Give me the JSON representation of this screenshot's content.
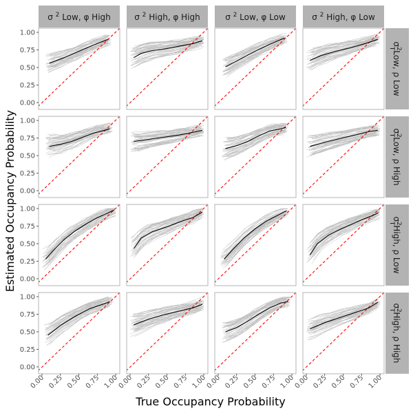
{
  "chart_data": {
    "type": "line",
    "xlabel": "True Occupancy Probability",
    "ylabel": "Estimated Occupancy Probability",
    "xlim": [
      0,
      1
    ],
    "ylim": [
      0,
      1
    ],
    "x_ticks": [
      "0.00",
      "0.25",
      "0.50",
      "0.75",
      "1.00"
    ],
    "y_ticks": [
      "0.00",
      "0.25",
      "0.50",
      "0.75",
      "1.00"
    ],
    "col_strips": [
      {
        "sig": "σ",
        "sup": "2",
        "rest": " Low, φ  High"
      },
      {
        "sig": "σ",
        "sup": "2",
        "rest": " High, φ  High"
      },
      {
        "sig": "σ",
        "sup": "2",
        "rest": " Low, φ  Low"
      },
      {
        "sig": "σ",
        "sup": "2",
        "rest": " High, φ  Low"
      }
    ],
    "row_strips": [
      {
        "sig": "σ",
        "sup": "2",
        "sub": "T",
        "rest": "Low, ρ  Low"
      },
      {
        "sig": "σ",
        "sup": "2",
        "sub": "T",
        "rest": "Low, ρ  High"
      },
      {
        "sig": "σ",
        "sup": "2",
        "sub": "T",
        "rest": "High, ρ  Low"
      },
      {
        "sig": "σ",
        "sup": "2",
        "sub": "T",
        "rest": "High, ρ  High"
      }
    ],
    "reference_line": {
      "name": "1:1 line",
      "x": [
        0,
        1
      ],
      "y": [
        0,
        1
      ],
      "color": "#ff0000",
      "dash": "dashed"
    },
    "colors": {
      "mean_line": "#000000",
      "replicate_lines": "#bebebe",
      "strip_bg": "#b3b3b3",
      "panel_border": "#b3b3b3"
    },
    "panels": [
      {
        "row": 0,
        "col": 0,
        "mean": {
          "x": [
            0.1,
            0.3,
            0.5,
            0.7,
            0.9
          ],
          "y": [
            0.56,
            0.64,
            0.73,
            0.82,
            0.9
          ]
        }
      },
      {
        "row": 0,
        "col": 1,
        "mean": {
          "x": [
            0.05,
            0.15,
            0.3,
            0.5,
            0.7,
            0.85,
            0.98
          ],
          "y": [
            0.64,
            0.7,
            0.74,
            0.77,
            0.81,
            0.84,
            0.88
          ]
        }
      },
      {
        "row": 0,
        "col": 2,
        "mean": {
          "x": [
            0.1,
            0.3,
            0.5,
            0.7,
            0.9
          ],
          "y": [
            0.51,
            0.62,
            0.73,
            0.83,
            0.92
          ]
        }
      },
      {
        "row": 0,
        "col": 3,
        "mean": {
          "x": [
            0.05,
            0.2,
            0.4,
            0.6,
            0.8,
            0.97
          ],
          "y": [
            0.6,
            0.67,
            0.73,
            0.78,
            0.84,
            0.9
          ]
        }
      },
      {
        "row": 1,
        "col": 0,
        "mean": {
          "x": [
            0.1,
            0.25,
            0.4,
            0.55,
            0.7,
            0.85,
            0.92
          ],
          "y": [
            0.63,
            0.66,
            0.7,
            0.76,
            0.82,
            0.86,
            0.88
          ]
        }
      },
      {
        "row": 1,
        "col": 1,
        "mean": {
          "x": [
            0.05,
            0.25,
            0.45,
            0.65,
            0.85,
            0.98
          ],
          "y": [
            0.7,
            0.73,
            0.76,
            0.79,
            0.83,
            0.86
          ]
        }
      },
      {
        "row": 1,
        "col": 2,
        "mean": {
          "x": [
            0.1,
            0.25,
            0.4,
            0.55,
            0.7,
            0.85,
            0.92
          ],
          "y": [
            0.6,
            0.64,
            0.7,
            0.78,
            0.85,
            0.88,
            0.9
          ]
        }
      },
      {
        "row": 1,
        "col": 3,
        "mean": {
          "x": [
            0.05,
            0.25,
            0.45,
            0.65,
            0.85,
            0.97
          ],
          "y": [
            0.63,
            0.69,
            0.74,
            0.79,
            0.84,
            0.86
          ]
        }
      },
      {
        "row": 2,
        "col": 0,
        "mean": {
          "x": [
            0.05,
            0.15,
            0.3,
            0.45,
            0.6,
            0.75,
            0.9,
            0.98
          ],
          "y": [
            0.28,
            0.4,
            0.56,
            0.68,
            0.78,
            0.87,
            0.94,
            0.98
          ]
        }
      },
      {
        "row": 2,
        "col": 1,
        "mean": {
          "x": [
            0.05,
            0.15,
            0.3,
            0.5,
            0.7,
            0.85,
            0.98
          ],
          "y": [
            0.43,
            0.58,
            0.67,
            0.74,
            0.82,
            0.87,
            0.95
          ]
        }
      },
      {
        "row": 2,
        "col": 2,
        "mean": {
          "x": [
            0.08,
            0.2,
            0.35,
            0.5,
            0.65,
            0.8,
            0.93
          ],
          "y": [
            0.28,
            0.42,
            0.58,
            0.71,
            0.82,
            0.9,
            0.97
          ]
        }
      },
      {
        "row": 2,
        "col": 3,
        "mean": {
          "x": [
            0.05,
            0.15,
            0.3,
            0.45,
            0.6,
            0.75,
            0.9,
            0.98
          ],
          "y": [
            0.34,
            0.5,
            0.62,
            0.7,
            0.77,
            0.84,
            0.9,
            0.94
          ]
        }
      },
      {
        "row": 3,
        "col": 0,
        "mean": {
          "x": [
            0.08,
            0.25,
            0.45,
            0.65,
            0.85,
            0.92
          ],
          "y": [
            0.45,
            0.59,
            0.72,
            0.83,
            0.9,
            0.93
          ]
        }
      },
      {
        "row": 3,
        "col": 1,
        "mean": {
          "x": [
            0.05,
            0.25,
            0.45,
            0.65,
            0.85,
            0.98
          ],
          "y": [
            0.6,
            0.68,
            0.74,
            0.79,
            0.84,
            0.89
          ]
        }
      },
      {
        "row": 3,
        "col": 2,
        "mean": {
          "x": [
            0.1,
            0.25,
            0.4,
            0.55,
            0.7,
            0.85,
            0.95
          ],
          "y": [
            0.5,
            0.56,
            0.65,
            0.75,
            0.84,
            0.91,
            0.93
          ]
        }
      },
      {
        "row": 3,
        "col": 3,
        "mean": {
          "x": [
            0.05,
            0.25,
            0.45,
            0.65,
            0.85,
            0.97
          ],
          "y": [
            0.54,
            0.63,
            0.7,
            0.77,
            0.84,
            0.92
          ]
        }
      }
    ]
  }
}
